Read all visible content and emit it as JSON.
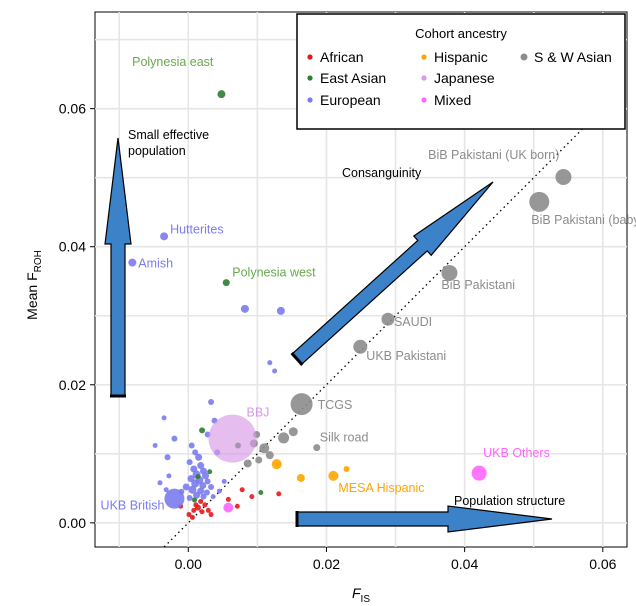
{
  "chart_data": {
    "type": "scatter",
    "xlabel": "F",
    "xlabel_sub": "IS",
    "ylabel": "Mean F",
    "ylabel_sub": "ROH",
    "xlim": [
      -0.0135,
      0.0635
    ],
    "ylim": [
      -0.0035,
      0.074
    ],
    "x_ticks": [
      0.0,
      0.02,
      0.04,
      0.06
    ],
    "x_tick_labels": [
      "0.00",
      "0.02",
      "0.04",
      "0.06"
    ],
    "y_ticks": [
      0.0,
      0.02,
      0.04,
      0.06
    ],
    "y_tick_labels": [
      "0.00",
      "0.02",
      "0.04",
      "0.06"
    ],
    "grid": true,
    "diagonal": "y = x (dotted)",
    "legend": {
      "title": "Cohort ancestry",
      "placement": "top-right",
      "entries": [
        {
          "name": "African",
          "color": "#e31a1c"
        },
        {
          "name": "Hispanic",
          "color": "#ffa500"
        },
        {
          "name": "S & W Asian",
          "color": "#8c8c8c"
        },
        {
          "name": "East Asian",
          "color": "#2e7d32"
        },
        {
          "name": "Japanese",
          "color": "#d899e6"
        },
        {
          "name": "European",
          "color": "#7b7bf0"
        },
        {
          "name": "Mixed",
          "color": "#ff66ff"
        }
      ]
    },
    "labeled_points": [
      {
        "label": "Polynesia east",
        "x": 0.0048,
        "y": 0.0621,
        "group": "East Asian",
        "size": 4,
        "label_color": "#6aa84f"
      },
      {
        "label": "Polynesia west",
        "x": 0.0055,
        "y": 0.0348,
        "group": "East Asian",
        "size": 3.5,
        "label_color": "#6aa84f"
      },
      {
        "label": "Hutterites",
        "x": -0.0035,
        "y": 0.0415,
        "group": "European",
        "size": 4,
        "label_color": "#7b7bf0"
      },
      {
        "label": "Amish",
        "x": -0.0081,
        "y": 0.0377,
        "group": "European",
        "size": 4,
        "label_color": "#7b7bf0"
      },
      {
        "label": "BiB Pakistani (UK born)",
        "x": 0.0543,
        "y": 0.0501,
        "group": "S & W Asian",
        "size": 8,
        "label_color": "#8c8c8c"
      },
      {
        "label": "BiB Pakistani (baby)",
        "x": 0.0508,
        "y": 0.0465,
        "group": "S & W Asian",
        "size": 10,
        "label_color": "#8c8c8c"
      },
      {
        "label": "BiB Pakistani",
        "x": 0.0378,
        "y": 0.0362,
        "group": "S & W Asian",
        "size": 8,
        "label_color": "#8c8c8c"
      },
      {
        "label": "SAUDI",
        "x": 0.0289,
        "y": 0.0295,
        "group": "S & W Asian",
        "size": 6.5,
        "label_color": "#8c8c8c"
      },
      {
        "label": "UKB Pakistani",
        "x": 0.0249,
        "y": 0.0255,
        "group": "S & W Asian",
        "size": 7,
        "label_color": "#8c8c8c"
      },
      {
        "label": "TCGS",
        "x": 0.0164,
        "y": 0.0172,
        "group": "S & W Asian",
        "size": 11,
        "label_color": "#8c8c8c"
      },
      {
        "label": "Silk road",
        "x": 0.0186,
        "y": 0.0109,
        "group": "S & W Asian",
        "size": 3.5,
        "label_color": "#8c8c8c"
      },
      {
        "label": "BBJ",
        "x": 0.0064,
        "y": 0.0122,
        "group": "Japanese",
        "size": 24,
        "label_color": "#d899e6"
      },
      {
        "label": "UKB Others",
        "x": 0.0421,
        "y": 0.0072,
        "group": "Mixed",
        "size": 7.5,
        "label_color": "#ff66ff"
      },
      {
        "label": "MESA Hispanic",
        "x": 0.021,
        "y": 0.0068,
        "group": "Hispanic",
        "size": 5,
        "label_color": "#ffa500"
      },
      {
        "label": "UKB British",
        "x": -0.002,
        "y": 0.0035,
        "group": "European",
        "size": 10,
        "label_color": "#7b7bf0"
      }
    ],
    "points": [
      {
        "x": 0.0082,
        "y": 0.031,
        "group": "European",
        "size": 4
      },
      {
        "x": 0.0134,
        "y": 0.0307,
        "group": "European",
        "size": 4
      },
      {
        "x": 0.0118,
        "y": 0.0232,
        "group": "European",
        "size": 2.5
      },
      {
        "x": 0.0125,
        "y": 0.022,
        "group": "European",
        "size": 2.5
      },
      {
        "x": 0.0033,
        "y": 0.0175,
        "group": "European",
        "size": 3
      },
      {
        "x": 0.0038,
        "y": 0.0148,
        "group": "European",
        "size": 3
      },
      {
        "x": 0.002,
        "y": 0.0134,
        "group": "East Asian",
        "size": 3
      },
      {
        "x": 0.0028,
        "y": 0.0128,
        "group": "European",
        "size": 3
      },
      {
        "x": -0.0035,
        "y": 0.0152,
        "group": "European",
        "size": 2.5
      },
      {
        "x": -0.002,
        "y": 0.0122,
        "group": "European",
        "size": 3
      },
      {
        "x": -0.003,
        "y": 0.0095,
        "group": "European",
        "size": 3
      },
      {
        "x": 0.0005,
        "y": 0.0112,
        "group": "European",
        "size": 3
      },
      {
        "x": 0.001,
        "y": 0.0102,
        "group": "European",
        "size": 3
      },
      {
        "x": 0.0015,
        "y": 0.0095,
        "group": "European",
        "size": 3.5
      },
      {
        "x": 0.0002,
        "y": 0.0088,
        "group": "European",
        "size": 3
      },
      {
        "x": 0.0018,
        "y": 0.0083,
        "group": "European",
        "size": 3.5
      },
      {
        "x": 0.0008,
        "y": 0.0078,
        "group": "European",
        "size": 3.5
      },
      {
        "x": 0.0022,
        "y": 0.0075,
        "group": "European",
        "size": 3.5
      },
      {
        "x": 0.0012,
        "y": 0.007,
        "group": "European",
        "size": 4
      },
      {
        "x": 0.0025,
        "y": 0.0068,
        "group": "European",
        "size": 3.5
      },
      {
        "x": 0.0004,
        "y": 0.0064,
        "group": "European",
        "size": 3.5
      },
      {
        "x": 0.0016,
        "y": 0.0062,
        "group": "European",
        "size": 4
      },
      {
        "x": 0.0028,
        "y": 0.006,
        "group": "European",
        "size": 3
      },
      {
        "x": 0.001,
        "y": 0.0057,
        "group": "European",
        "size": 4
      },
      {
        "x": 0.0021,
        "y": 0.0054,
        "group": "European",
        "size": 3.5
      },
      {
        "x": 0.0033,
        "y": 0.0052,
        "group": "European",
        "size": 3
      },
      {
        "x": -0.0003,
        "y": 0.0052,
        "group": "European",
        "size": 3.5
      },
      {
        "x": 0.0006,
        "y": 0.0048,
        "group": "European",
        "size": 4
      },
      {
        "x": 0.0018,
        "y": 0.0046,
        "group": "European",
        "size": 3.5
      },
      {
        "x": 0.0027,
        "y": 0.0044,
        "group": "European",
        "size": 3
      },
      {
        "x": -0.001,
        "y": 0.0045,
        "group": "European",
        "size": 3
      },
      {
        "x": 0.0012,
        "y": 0.004,
        "group": "European",
        "size": 3.5
      },
      {
        "x": 0.0022,
        "y": 0.0038,
        "group": "European",
        "size": 3
      },
      {
        "x": 0.0002,
        "y": 0.0036,
        "group": "European",
        "size": 3
      },
      {
        "x": 0.0036,
        "y": 0.0038,
        "group": "European",
        "size": 2.5
      },
      {
        "x": 0.0045,
        "y": 0.0046,
        "group": "European",
        "size": 2.5
      },
      {
        "x": 0.0052,
        "y": 0.006,
        "group": "European",
        "size": 2.5
      },
      {
        "x": -0.0028,
        "y": 0.0068,
        "group": "European",
        "size": 2.5
      },
      {
        "x": -0.0041,
        "y": 0.0058,
        "group": "European",
        "size": 2.5
      },
      {
        "x": -0.0032,
        "y": 0.0048,
        "group": "European",
        "size": 2.5
      },
      {
        "x": -0.0048,
        "y": 0.0112,
        "group": "European",
        "size": 2.5
      },
      {
        "x": 0.0042,
        "y": 0.0102,
        "group": "European",
        "size": 3
      },
      {
        "x": 0.0009,
        "y": 0.0033,
        "group": "East Asian",
        "size": 2.5
      },
      {
        "x": 0.0014,
        "y": 0.0067,
        "group": "East Asian",
        "size": 2.5
      },
      {
        "x": 0.0031,
        "y": 0.0074,
        "group": "East Asian",
        "size": 2.5
      },
      {
        "x": 0.0072,
        "y": 0.0112,
        "group": "East Asian",
        "size": 3
      },
      {
        "x": 0.0105,
        "y": 0.0044,
        "group": "East Asian",
        "size": 2.5
      },
      {
        "x": 0.0001,
        "y": 0.0012,
        "group": "African",
        "size": 2.5
      },
      {
        "x": 0.0008,
        "y": 0.0018,
        "group": "African",
        "size": 2.5
      },
      {
        "x": 0.0014,
        "y": 0.0022,
        "group": "African",
        "size": 3
      },
      {
        "x": 0.002,
        "y": 0.0016,
        "group": "African",
        "size": 2.5
      },
      {
        "x": 0.0024,
        "y": 0.0026,
        "group": "African",
        "size": 2.5
      },
      {
        "x": 0.0018,
        "y": 0.0031,
        "group": "African",
        "size": 2.5
      },
      {
        "x": 0.0011,
        "y": 0.0026,
        "group": "African",
        "size": 2.5
      },
      {
        "x": 0.0029,
        "y": 0.0018,
        "group": "African",
        "size": 2.5
      },
      {
        "x": -0.0011,
        "y": 0.0024,
        "group": "African",
        "size": 2.5
      },
      {
        "x": 0.0006,
        "y": 0.0008,
        "group": "African",
        "size": 2.5
      },
      {
        "x": 0.0033,
        "y": 0.0012,
        "group": "African",
        "size": 2.5
      },
      {
        "x": 0.0058,
        "y": 0.0034,
        "group": "African",
        "size": 2.5
      },
      {
        "x": 0.0078,
        "y": 0.0048,
        "group": "African",
        "size": 2.5
      },
      {
        "x": 0.0092,
        "y": 0.0038,
        "group": "African",
        "size": 2.5
      },
      {
        "x": 0.0071,
        "y": 0.0024,
        "group": "African",
        "size": 2.5
      },
      {
        "x": 0.0131,
        "y": 0.0042,
        "group": "African",
        "size": 2.5
      },
      {
        "x": 0.0058,
        "y": 0.0022,
        "group": "Mixed",
        "size": 5
      },
      {
        "x": 0.0128,
        "y": 0.0085,
        "group": "Hispanic",
        "size": 5
      },
      {
        "x": 0.0163,
        "y": 0.0065,
        "group": "Hispanic",
        "size": 4
      },
      {
        "x": 0.0229,
        "y": 0.0078,
        "group": "Hispanic",
        "size": 3
      },
      {
        "x": 0.0138,
        "y": 0.0123,
        "group": "S & W Asian",
        "size": 5.5
      },
      {
        "x": 0.0152,
        "y": 0.0132,
        "group": "S & W Asian",
        "size": 4.5
      },
      {
        "x": 0.011,
        "y": 0.0108,
        "group": "S & W Asian",
        "size": 5
      },
      {
        "x": 0.0118,
        "y": 0.0098,
        "group": "S & W Asian",
        "size": 4
      },
      {
        "x": 0.0095,
        "y": 0.0115,
        "group": "S & W Asian",
        "size": 4
      },
      {
        "x": 0.0102,
        "y": 0.0091,
        "group": "S & W Asian",
        "size": 3.5
      },
      {
        "x": 0.0086,
        "y": 0.0086,
        "group": "S & W Asian",
        "size": 4
      },
      {
        "x": 0.0099,
        "y": 0.0128,
        "group": "S & W Asian",
        "size": 3.5
      }
    ],
    "annotations": [
      {
        "name": "small-population",
        "text_lines": [
          "Small effective",
          "population"
        ]
      },
      {
        "name": "consanguinity",
        "text_lines": [
          "Consanguinity"
        ]
      },
      {
        "name": "population-structure",
        "text_lines": [
          "Population structure"
        ]
      }
    ]
  }
}
